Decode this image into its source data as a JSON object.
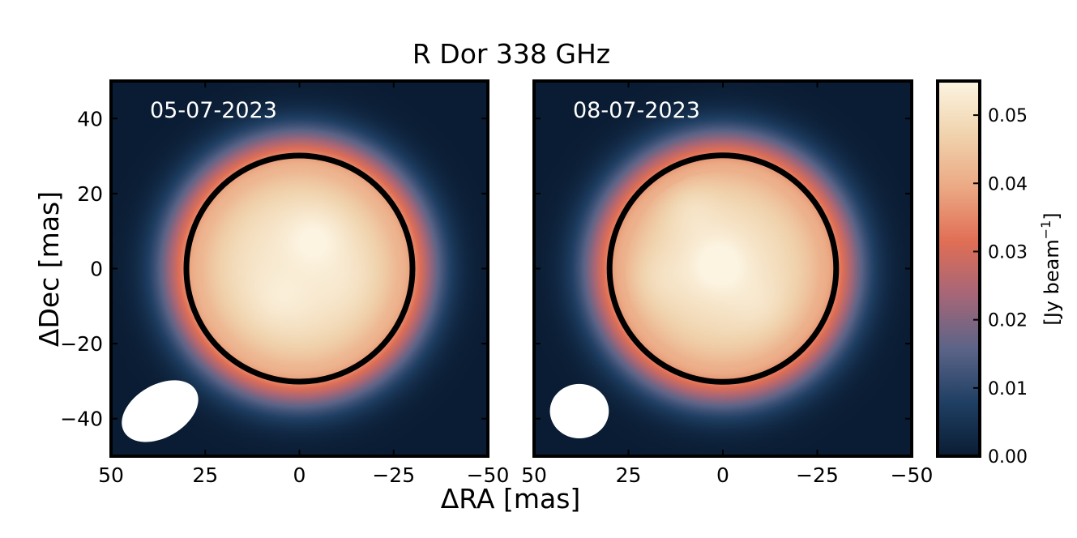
{
  "chart_data": {
    "type": "heatmap",
    "title": "R Dor 338 GHz",
    "xlabel": "ΔRA [mas]",
    "ylabel": "ΔDec [mas]",
    "xlim": [
      50,
      -50
    ],
    "ylim": [
      -50,
      50
    ],
    "xticks": [
      50,
      25,
      0,
      -25,
      -50
    ],
    "xtick_labels": [
      "50",
      "25",
      "0",
      "−25",
      "−50"
    ],
    "yticks": [
      40,
      20,
      0,
      -20,
      -40
    ],
    "ytick_labels": [
      "40",
      "20",
      "0",
      "−20",
      "−40"
    ],
    "panels": [
      {
        "date": "05-07-2023",
        "disk": {
          "center": [
            0,
            0
          ],
          "radius": 30
        },
        "beam": {
          "center": [
            37,
            -38
          ],
          "semi_axis_major": 11,
          "semi_axis_minor": 7,
          "angle_deg": 30
        },
        "peak_flux": 0.054,
        "bright_spots": [
          {
            "x": -4,
            "y": 8,
            "amp": 0.004
          },
          {
            "x": 5,
            "y": -8,
            "amp": 0.002
          },
          {
            "x": -12,
            "y": -4,
            "amp": 0.001
          }
        ]
      },
      {
        "date": "08-07-2023",
        "disk": {
          "center": [
            0,
            0
          ],
          "radius": 30
        },
        "beam": {
          "center": [
            38,
            -38
          ],
          "semi_axis_major": 7.8,
          "semi_axis_minor": 7.2,
          "angle_deg": 0
        },
        "peak_flux": 0.053,
        "bright_spots": [
          {
            "x": 1,
            "y": 1,
            "amp": 0.006
          },
          {
            "x": 9,
            "y": 17,
            "amp": 0.003
          },
          {
            "x": -10,
            "y": -10,
            "amp": 0.002
          },
          {
            "x": 18,
            "y": -3,
            "amp": 0.002
          }
        ]
      }
    ],
    "colorbar": {
      "label": "[Jy beam",
      "label_superscript": "−1",
      "label_suffix": "]",
      "vmin": 0.0,
      "vmax": 0.055,
      "ticks": [
        0.0,
        0.01,
        0.02,
        0.03,
        0.04,
        0.05
      ],
      "tick_labels": [
        "0.00",
        "0.01",
        "0.02",
        "0.03",
        "0.04",
        "0.05"
      ],
      "colors": [
        "#0a1c33",
        "#1f3f63",
        "#5b6488",
        "#a56678",
        "#e06e55",
        "#eba883",
        "#f0d3ad",
        "#fcf4e1"
      ]
    },
    "grid": false
  }
}
